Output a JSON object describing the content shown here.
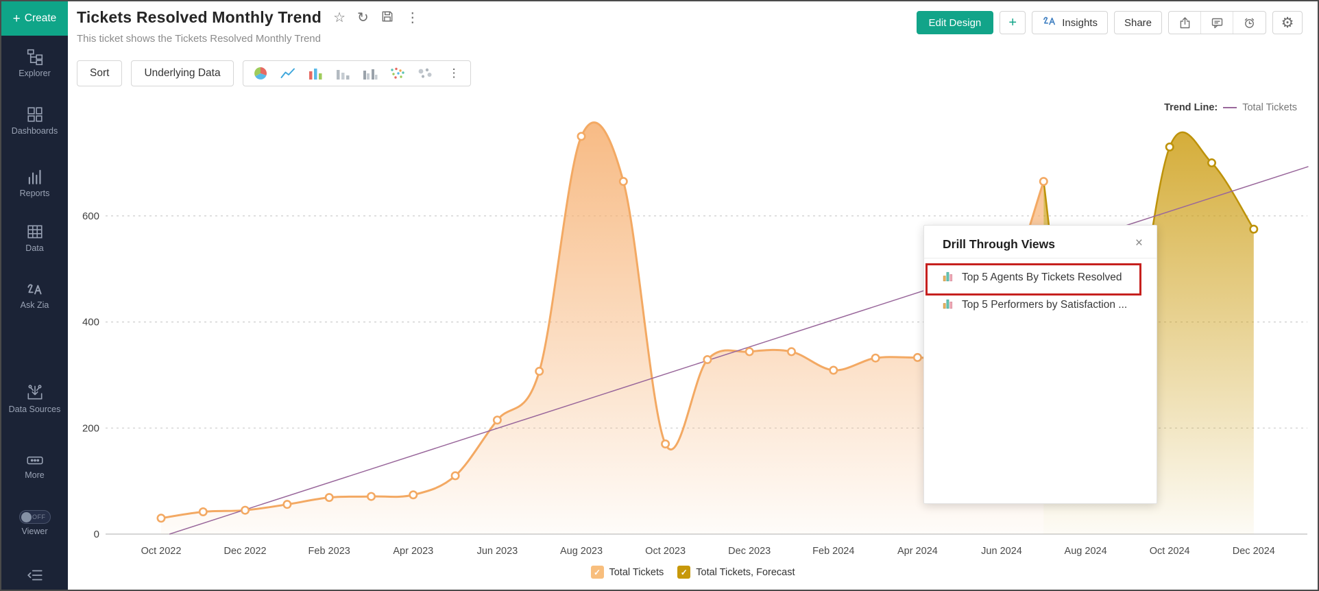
{
  "sidebar": {
    "create_label": "Create",
    "items": [
      {
        "label": "Explorer",
        "icon": "explorer"
      },
      {
        "label": "Dashboards",
        "icon": "dashboards"
      },
      {
        "label": "Reports",
        "icon": "reports"
      },
      {
        "label": "Data",
        "icon": "data"
      },
      {
        "label": "Ask Zia",
        "icon": "zia"
      },
      {
        "label": "Data Sources",
        "icon": "datasources"
      },
      {
        "label": "More",
        "icon": "more"
      }
    ],
    "viewer_toggle": {
      "label": "Viewer",
      "state": "OFF"
    }
  },
  "header": {
    "title": "Tickets Resolved Monthly Trend",
    "subtitle": "This ticket shows the Tickets Resolved Monthly Trend",
    "edit_design_label": "Edit Design",
    "add_label": "+",
    "insights_label": "Insights",
    "share_label": "Share"
  },
  "toolbar": {
    "sort_label": "Sort",
    "underlying_data_label": "Underlying Data"
  },
  "popup": {
    "title": "Drill Through Views",
    "close": "×",
    "items": [
      {
        "label": "Top 5 Agents By Tickets Resolved"
      },
      {
        "label": "Top 5 Performers by Satisfaction ..."
      }
    ],
    "highlighted_index": 0
  },
  "trend_legend": {
    "label": "Trend Line:",
    "series": "Total Tickets"
  },
  "legend": [
    {
      "label": "Total Tickets",
      "color": "#F8BE7D",
      "check": "✓"
    },
    {
      "label": "Total Tickets, Forecast",
      "color": "#C7980A",
      "check": "✓"
    }
  ],
  "chart_data": {
    "type": "area",
    "title": "Tickets Resolved Monthly Trend",
    "x": [
      "Oct 2022",
      "Nov 2022",
      "Dec 2022",
      "Jan 2023",
      "Feb 2023",
      "Mar 2023",
      "Apr 2023",
      "May 2023",
      "Jun 2023",
      "Jul 2023",
      "Aug 2023",
      "Sep 2023",
      "Oct 2023",
      "Nov 2023",
      "Dec 2023",
      "Jan 2024",
      "Feb 2024",
      "Mar 2024",
      "Apr 2024",
      "May 2024",
      "Jun 2024",
      "Jul 2024",
      "Aug 2024",
      "Sep 2024",
      "Oct 2024",
      "Nov 2024",
      "Dec 2024"
    ],
    "x_label_every": 2,
    "yticks": [
      0,
      200,
      400,
      600
    ],
    "ylim": [
      0,
      800
    ],
    "grid": "dashed-horizontal",
    "series": [
      {
        "name": "Total Tickets",
        "line_color": "#F3A963",
        "fill_top": "#F6B071",
        "values": [
          30,
          42,
          45,
          56,
          69,
          71,
          74,
          110,
          215,
          307,
          750,
          665,
          170,
          329,
          344,
          344,
          309,
          332,
          333,
          335,
          430,
          665,
          null,
          null,
          null,
          null,
          null
        ]
      },
      {
        "name": "Total Tickets, Forecast",
        "line_color": "#BD920A",
        "fill_top": "#CD9E15",
        "values": [
          null,
          null,
          null,
          null,
          null,
          null,
          null,
          null,
          null,
          null,
          null,
          null,
          null,
          null,
          null,
          null,
          null,
          null,
          null,
          null,
          null,
          665,
          90,
          300,
          730,
          700,
          575
        ]
      }
    ],
    "trend_line": {
      "name": "Total Tickets",
      "color": "#99679B",
      "x1_index": 0.2,
      "v1": 0,
      "x2_index": 27.3,
      "v2": 693
    },
    "legend_position": "bottom-center"
  }
}
